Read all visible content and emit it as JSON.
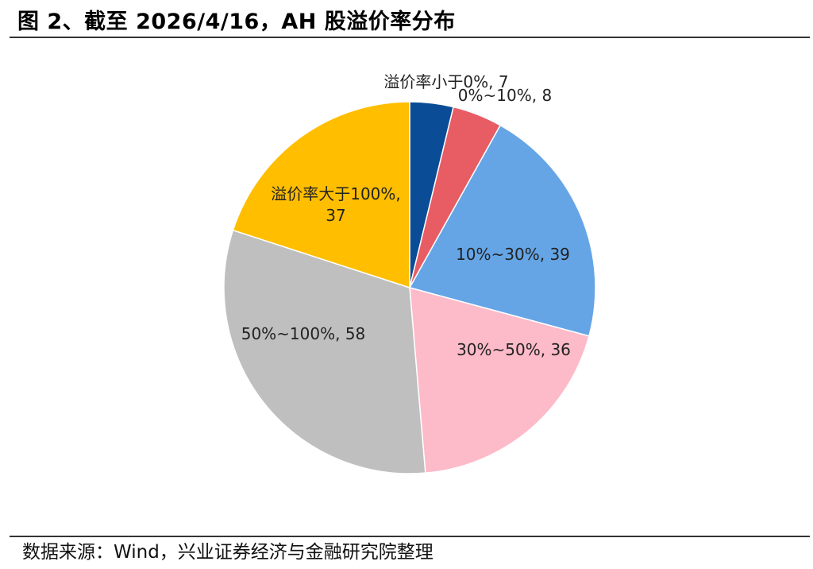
{
  "figure": {
    "title": "图 2、截至 2026/4/16，AH 股溢价率分布",
    "source": "数据来源：Wind，兴业证券经济与金融研究院整理"
  },
  "chart_data": {
    "type": "pie",
    "start_angle_deg": 0,
    "direction": "clockwise",
    "slices": [
      {
        "label": "溢价率小于0%",
        "value": 7,
        "display": "溢价率小于0%, 7",
        "color": "#0B4C97"
      },
      {
        "label": "0%~10%",
        "value": 8,
        "display": "0%~10%, 8",
        "color": "#E85C63"
      },
      {
        "label": "10%~30%",
        "value": 39,
        "display": "10%~30%, 39",
        "color": "#65A5E6"
      },
      {
        "label": "30%~50%",
        "value": 36,
        "display": "30%~50%, 36",
        "color": "#FDBAC8"
      },
      {
        "label": "50%~100%",
        "value": 58,
        "display": "50%~100%, 58",
        "color": "#BFBFBF"
      },
      {
        "label": "溢价率大于100%",
        "value": 37,
        "display": [
          "溢价率大于100%,",
          "37"
        ],
        "color": "#FFBE00"
      }
    ]
  }
}
